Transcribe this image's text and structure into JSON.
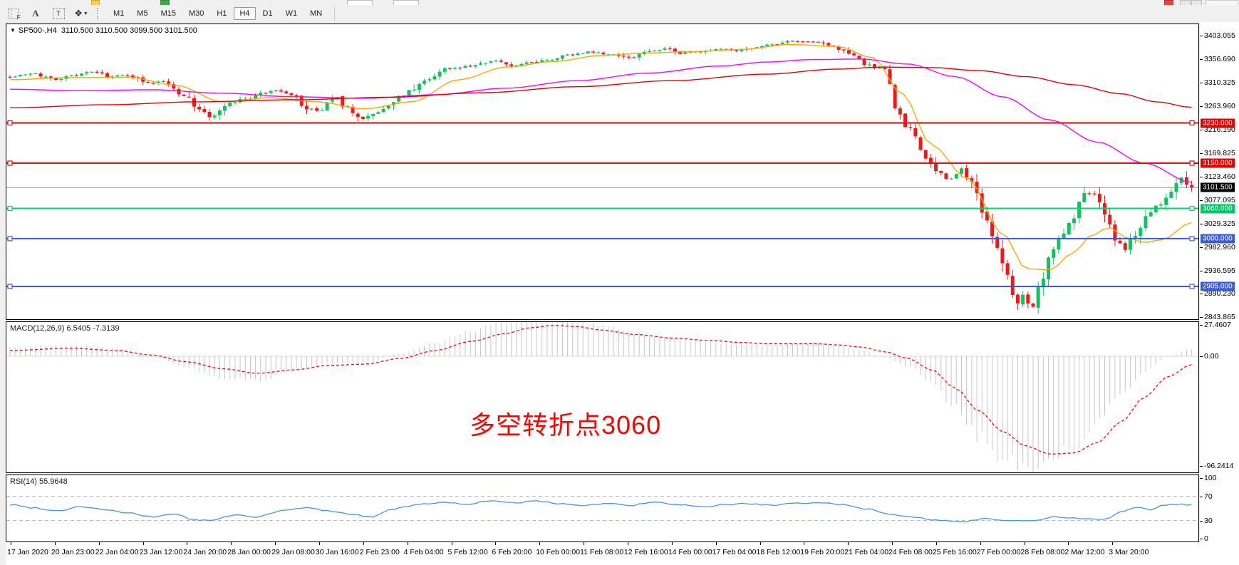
{
  "toolbar": {
    "icons": [
      {
        "name": "grid-f-icon"
      },
      {
        "name": "font-a-icon",
        "glyph": "A"
      },
      {
        "name": "text-label-icon",
        "glyph": "T"
      },
      {
        "name": "shapes-icon",
        "glyph": "❖"
      }
    ],
    "timeframes": [
      "M1",
      "M5",
      "M15",
      "M30",
      "H1",
      "H4",
      "D1",
      "W1",
      "MN"
    ],
    "selected_timeframe": "H4"
  },
  "chart": {
    "title_symbol": "SP500-,H4",
    "title_quotes": "3110.500 3110.500 3099.500 3101.500",
    "open": "3110.500",
    "high": "3110.500",
    "low": "3099.500",
    "close": "3101.500"
  },
  "macd_panel": {
    "label": "MACD(12,26,9)",
    "value_main": "6.5405",
    "value_signal": "-7.3139"
  },
  "rsi_panel": {
    "label": "RSI(14)",
    "value": "55.9648"
  },
  "annotation": {
    "text": "多空转折点3060",
    "color": "#ff0000"
  },
  "colors": {
    "candle_up": "#0fc35e",
    "candle_down": "#f01818",
    "ma_fast": "#ffa500",
    "ma_mid": "#ff00ff",
    "ma_slow": "#e80000",
    "hline_red": "#ff0000",
    "hline_green": "#00d26a",
    "hline_blue": "#3c5bd7",
    "current_line": "#9a9a9a",
    "current_tag_bg": "#000000",
    "macd_hist": "#c6c6c6",
    "macd_signal": "#ff0000",
    "rsi_line": "#4596e3",
    "level_dash": "#bbbbbb"
  },
  "chart_data": {
    "type": "candlestick+indicators",
    "symbol": "SP500-",
    "period": "H4",
    "main_ylim": [
      2839.8,
      3426.2
    ],
    "price_ticks": [
      3403.055,
      3356.69,
      3310.325,
      3263.96,
      3216.19,
      3169.825,
      3123.46,
      3077.095,
      3029.325,
      2982.96,
      2936.595,
      2890.23,
      2843.865
    ],
    "current_price": 3101.5,
    "current_tag": "3101.500",
    "hlines": [
      {
        "price": 3230,
        "tag": "3230.000",
        "color": "#ff0000",
        "tag_bg": "#e00000"
      },
      {
        "price": 3150,
        "tag": "3150.000",
        "color": "#ff0000",
        "tag_bg": "#e00000"
      },
      {
        "price": 3060,
        "tag": "3060.000",
        "color": "#00d26a",
        "tag_bg": "#00c667"
      },
      {
        "price": 3000,
        "tag": "3000.000",
        "color": "#3c5bd7",
        "tag_bg": "#3c5bd7"
      },
      {
        "price": 2905,
        "tag": "2905.000",
        "color": "#3c5bd7",
        "tag_bg": "#3c5bd7"
      }
    ],
    "price_path": [
      [
        0,
        3322
      ],
      [
        0.02,
        3328
      ],
      [
        0.035,
        3316
      ],
      [
        0.05,
        3324
      ],
      [
        0.07,
        3330
      ],
      [
        0.085,
        3322
      ],
      [
        0.1,
        3326
      ],
      [
        0.115,
        3308
      ],
      [
        0.13,
        3312
      ],
      [
        0.145,
        3288
      ],
      [
        0.16,
        3258
      ],
      [
        0.17,
        3243
      ],
      [
        0.185,
        3268
      ],
      [
        0.2,
        3277
      ],
      [
        0.215,
        3290
      ],
      [
        0.225,
        3293
      ],
      [
        0.24,
        3285
      ],
      [
        0.252,
        3258
      ],
      [
        0.262,
        3252
      ],
      [
        0.275,
        3283
      ],
      [
        0.285,
        3262
      ],
      [
        0.295,
        3238
      ],
      [
        0.31,
        3252
      ],
      [
        0.33,
        3282
      ],
      [
        0.35,
        3312
      ],
      [
        0.37,
        3338
      ],
      [
        0.39,
        3344
      ],
      [
        0.41,
        3355
      ],
      [
        0.425,
        3342
      ],
      [
        0.44,
        3350
      ],
      [
        0.455,
        3356
      ],
      [
        0.47,
        3364
      ],
      [
        0.49,
        3371
      ],
      [
        0.51,
        3366
      ],
      [
        0.525,
        3358
      ],
      [
        0.54,
        3372
      ],
      [
        0.555,
        3377
      ],
      [
        0.565,
        3367
      ],
      [
        0.58,
        3371
      ],
      [
        0.6,
        3377
      ],
      [
        0.615,
        3374
      ],
      [
        0.63,
        3381
      ],
      [
        0.65,
        3388
      ],
      [
        0.665,
        3393
      ],
      [
        0.68,
        3390
      ],
      [
        0.695,
        3384
      ],
      [
        0.705,
        3371
      ],
      [
        0.715,
        3361
      ],
      [
        0.73,
        3340
      ],
      [
        0.742,
        3334
      ],
      [
        0.75,
        3248
      ],
      [
        0.762,
        3214
      ],
      [
        0.775,
        3158
      ],
      [
        0.785,
        3134
      ],
      [
        0.795,
        3120
      ],
      [
        0.805,
        3142
      ],
      [
        0.815,
        3104
      ],
      [
        0.825,
        3036
      ],
      [
        0.835,
        2980
      ],
      [
        0.845,
        2922
      ],
      [
        0.852,
        2866
      ],
      [
        0.858,
        2882
      ],
      [
        0.864,
        2858
      ],
      [
        0.872,
        2918
      ],
      [
        0.88,
        2964
      ],
      [
        0.89,
        3006
      ],
      [
        0.9,
        3048
      ],
      [
        0.91,
        3084
      ],
      [
        0.918,
        3090
      ],
      [
        0.928,
        3036
      ],
      [
        0.936,
        2996
      ],
      [
        0.944,
        2982
      ],
      [
        0.952,
        3006
      ],
      [
        0.96,
        3040
      ],
      [
        0.97,
        3064
      ],
      [
        0.98,
        3088
      ],
      [
        0.99,
        3122
      ],
      [
        1,
        3101.5
      ]
    ],
    "ma_fast": [
      [
        0,
        3316
      ],
      [
        0.05,
        3320
      ],
      [
        0.1,
        3321
      ],
      [
        0.14,
        3305
      ],
      [
        0.18,
        3272
      ],
      [
        0.22,
        3280
      ],
      [
        0.26,
        3272
      ],
      [
        0.3,
        3258
      ],
      [
        0.34,
        3272
      ],
      [
        0.38,
        3316
      ],
      [
        0.42,
        3341
      ],
      [
        0.46,
        3352
      ],
      [
        0.5,
        3364
      ],
      [
        0.54,
        3369
      ],
      [
        0.58,
        3372
      ],
      [
        0.62,
        3376
      ],
      [
        0.66,
        3386
      ],
      [
        0.7,
        3382
      ],
      [
        0.73,
        3360
      ],
      [
        0.755,
        3288
      ],
      [
        0.78,
        3186
      ],
      [
        0.81,
        3120
      ],
      [
        0.84,
        3010
      ],
      [
        0.86,
        2940
      ],
      [
        0.88,
        2938
      ],
      [
        0.9,
        2972
      ],
      [
        0.915,
        3006
      ],
      [
        0.93,
        3022
      ],
      [
        0.945,
        3002
      ],
      [
        0.96,
        2992
      ],
      [
        0.975,
        2998
      ],
      [
        1,
        3032
      ]
    ],
    "ma_mid": [
      [
        0,
        3297
      ],
      [
        0.06,
        3294
      ],
      [
        0.12,
        3296
      ],
      [
        0.18,
        3289
      ],
      [
        0.24,
        3282
      ],
      [
        0.3,
        3279
      ],
      [
        0.36,
        3286
      ],
      [
        0.42,
        3299
      ],
      [
        0.48,
        3314
      ],
      [
        0.54,
        3329
      ],
      [
        0.6,
        3343
      ],
      [
        0.64,
        3351
      ],
      [
        0.68,
        3356
      ],
      [
        0.72,
        3357
      ],
      [
        0.76,
        3347
      ],
      [
        0.8,
        3322
      ],
      [
        0.84,
        3282
      ],
      [
        0.88,
        3236
      ],
      [
        0.92,
        3192
      ],
      [
        0.96,
        3150
      ],
      [
        1,
        3112
      ]
    ],
    "ma_slow": [
      [
        0,
        3260
      ],
      [
        0.08,
        3266
      ],
      [
        0.16,
        3272
      ],
      [
        0.24,
        3276
      ],
      [
        0.32,
        3281
      ],
      [
        0.4,
        3290
      ],
      [
        0.48,
        3302
      ],
      [
        0.56,
        3314
      ],
      [
        0.64,
        3327
      ],
      [
        0.7,
        3337
      ],
      [
        0.74,
        3341
      ],
      [
        0.78,
        3340
      ],
      [
        0.82,
        3334
      ],
      [
        0.86,
        3322
      ],
      [
        0.9,
        3306
      ],
      [
        0.94,
        3288
      ],
      [
        0.97,
        3272
      ],
      [
        1,
        3261
      ]
    ],
    "macd": {
      "ticks": [
        {
          "label": "27.4607",
          "value": 27.4607
        },
        {
          "label": "0.00",
          "value": 0
        },
        {
          "label": "-96.2414",
          "value": -96.2414
        }
      ],
      "ylim": [
        -102,
        30
      ],
      "histogram": [
        [
          0,
          8
        ],
        [
          0.05,
          10
        ],
        [
          0.09,
          7
        ],
        [
          0.12,
          0
        ],
        [
          0.15,
          -10
        ],
        [
          0.18,
          -19
        ],
        [
          0.21,
          -22
        ],
        [
          0.24,
          -13
        ],
        [
          0.27,
          -6
        ],
        [
          0.3,
          -6
        ],
        [
          0.33,
          2
        ],
        [
          0.36,
          12
        ],
        [
          0.39,
          22
        ],
        [
          0.42,
          31
        ],
        [
          0.44,
          37
        ],
        [
          0.46,
          40
        ],
        [
          0.48,
          34
        ],
        [
          0.5,
          26
        ],
        [
          0.53,
          20
        ],
        [
          0.56,
          16
        ],
        [
          0.59,
          13
        ],
        [
          0.62,
          10
        ],
        [
          0.64,
          9
        ],
        [
          0.66,
          11
        ],
        [
          0.68,
          12
        ],
        [
          0.7,
          9
        ],
        [
          0.72,
          5
        ],
        [
          0.74,
          -1
        ],
        [
          0.76,
          -9
        ],
        [
          0.78,
          -22
        ],
        [
          0.8,
          -45
        ],
        [
          0.82,
          -70
        ],
        [
          0.84,
          -90
        ],
        [
          0.86,
          -97
        ],
        [
          0.88,
          -91
        ],
        [
          0.9,
          -80
        ],
        [
          0.92,
          -58
        ],
        [
          0.94,
          -34
        ],
        [
          0.96,
          -14
        ],
        [
          0.98,
          0
        ],
        [
          1,
          6.5
        ]
      ],
      "signal": [
        [
          0,
          5
        ],
        [
          0.05,
          7
        ],
        [
          0.09,
          5
        ],
        [
          0.12,
          1
        ],
        [
          0.15,
          -5
        ],
        [
          0.18,
          -11
        ],
        [
          0.21,
          -15
        ],
        [
          0.24,
          -12
        ],
        [
          0.27,
          -8
        ],
        [
          0.3,
          -7
        ],
        [
          0.33,
          -2
        ],
        [
          0.36,
          5
        ],
        [
          0.39,
          13
        ],
        [
          0.42,
          20
        ],
        [
          0.44,
          25
        ],
        [
          0.46,
          27
        ],
        [
          0.48,
          26
        ],
        [
          0.5,
          23
        ],
        [
          0.53,
          19
        ],
        [
          0.56,
          16
        ],
        [
          0.59,
          14
        ],
        [
          0.62,
          12
        ],
        [
          0.64,
          11
        ],
        [
          0.66,
          11
        ],
        [
          0.68,
          11
        ],
        [
          0.7,
          10
        ],
        [
          0.72,
          8
        ],
        [
          0.74,
          4
        ],
        [
          0.76,
          -2
        ],
        [
          0.78,
          -12
        ],
        [
          0.8,
          -28
        ],
        [
          0.82,
          -48
        ],
        [
          0.84,
          -66
        ],
        [
          0.86,
          -79
        ],
        [
          0.88,
          -86
        ],
        [
          0.9,
          -85
        ],
        [
          0.92,
          -76
        ],
        [
          0.94,
          -58
        ],
        [
          0.96,
          -36
        ],
        [
          0.98,
          -18
        ],
        [
          1,
          -7.3
        ]
      ]
    },
    "rsi": {
      "ticks": [
        {
          "label": "100",
          "value": 100
        },
        {
          "label": "70",
          "value": 70
        },
        {
          "label": "30",
          "value": 30
        },
        {
          "label": "0",
          "value": 0
        }
      ],
      "levels": [
        70,
        30
      ],
      "ylim": [
        0,
        100
      ],
      "line": [
        [
          0,
          56
        ],
        [
          0.02,
          51
        ],
        [
          0.04,
          46
        ],
        [
          0.06,
          53
        ],
        [
          0.08,
          48
        ],
        [
          0.1,
          42
        ],
        [
          0.12,
          36
        ],
        [
          0.14,
          41
        ],
        [
          0.155,
          31
        ],
        [
          0.17,
          30
        ],
        [
          0.19,
          39
        ],
        [
          0.21,
          36
        ],
        [
          0.23,
          46
        ],
        [
          0.25,
          51
        ],
        [
          0.27,
          46
        ],
        [
          0.29,
          40
        ],
        [
          0.305,
          36
        ],
        [
          0.325,
          49
        ],
        [
          0.345,
          56
        ],
        [
          0.365,
          60
        ],
        [
          0.385,
          57
        ],
        [
          0.405,
          62
        ],
        [
          0.425,
          59
        ],
        [
          0.445,
          62
        ],
        [
          0.465,
          58
        ],
        [
          0.485,
          55
        ],
        [
          0.505,
          58
        ],
        [
          0.525,
          55
        ],
        [
          0.545,
          60
        ],
        [
          0.565,
          56
        ],
        [
          0.585,
          52
        ],
        [
          0.605,
          56
        ],
        [
          0.625,
          58
        ],
        [
          0.645,
          55
        ],
        [
          0.665,
          58
        ],
        [
          0.685,
          60
        ],
        [
          0.705,
          56
        ],
        [
          0.725,
          49
        ],
        [
          0.745,
          41
        ],
        [
          0.765,
          35
        ],
        [
          0.785,
          30
        ],
        [
          0.805,
          28
        ],
        [
          0.825,
          33
        ],
        [
          0.845,
          30
        ],
        [
          0.865,
          29
        ],
        [
          0.885,
          36
        ],
        [
          0.905,
          33
        ],
        [
          0.925,
          31
        ],
        [
          0.94,
          44
        ],
        [
          0.955,
          52
        ],
        [
          0.965,
          48
        ],
        [
          0.975,
          55
        ],
        [
          0.985,
          57
        ],
        [
          1,
          56
        ]
      ]
    },
    "time_axis_labels": [
      "17 Jan 2020",
      "20 Jan 23:00",
      "22 Jan 04:00",
      "23 Jan 12:00",
      "24 Jan 20:00",
      "28 Jan 00:00",
      "29 Jan 08:00",
      "30 Jan 16:00",
      "2 Feb 23:00",
      "4 Feb 04:00",
      "5 Feb 12:00",
      "6 Feb 20:00",
      "10 Feb 00:00",
      "11 Feb 08:00",
      "12 Feb 16:00",
      "14 Feb 00:00",
      "17 Feb 04:00",
      "18 Feb 12:00",
      "19 Feb 20:00",
      "21 Feb 04:00",
      "24 Feb 08:00",
      "25 Feb 16:00",
      "27 Feb 00:00",
      "28 Feb 08:00",
      "2 Mar 12:00",
      "3 Mar 20:00"
    ]
  }
}
